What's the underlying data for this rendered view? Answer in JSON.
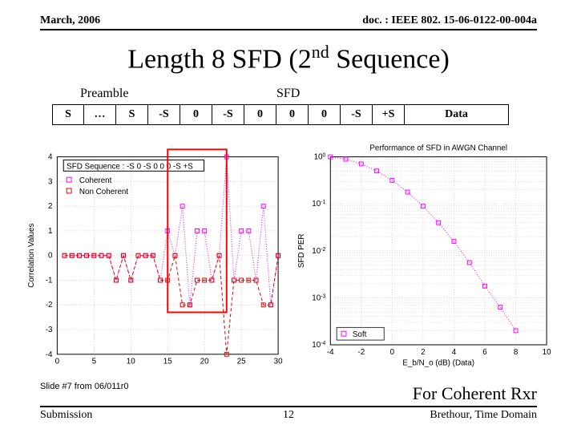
{
  "header": {
    "left": "March, 2006",
    "right": "doc. : IEEE 802. 15-06-0122-00-004a"
  },
  "title": {
    "pre": "Length 8 SFD (2",
    "sup": "nd",
    "post": " Sequence)"
  },
  "labels": {
    "preamble": "Preamble",
    "sfd": "SFD"
  },
  "seq": {
    "cells": [
      "S",
      "…",
      "S",
      "-S",
      "0",
      "-S",
      "0",
      "0",
      "0",
      "-S",
      "+S",
      "Data"
    ],
    "widths": [
      40,
      40,
      40,
      40,
      40,
      40,
      40,
      40,
      40,
      40,
      40,
      130
    ],
    "preamble_span": [
      0,
      3
    ],
    "sfd_span": [
      3,
      11
    ]
  },
  "left_chart": {
    "title": "SFD Sequence : -S 0 -S 0 0 0 -S +S",
    "title_box": true,
    "ylabel": "Correlation Values",
    "xlim": [
      0,
      30
    ],
    "ylim": [
      -4,
      4
    ],
    "xticks": [
      0,
      5,
      10,
      15,
      20,
      25,
      30
    ],
    "yticks": [
      -4,
      -3,
      -2,
      -1,
      0,
      1,
      2,
      3,
      4
    ],
    "grid_color": "#b0b0b0",
    "legend": [
      {
        "label": "Coherent",
        "color": "#ff00ff",
        "marker": "sq-dot"
      },
      {
        "label": "Non Coherent",
        "color": "#e00000",
        "marker": "sq-dash"
      }
    ],
    "coherent": {
      "color": "#ff00ff",
      "pts": [
        [
          1,
          0
        ],
        [
          2,
          0
        ],
        [
          3,
          0
        ],
        [
          4,
          0
        ],
        [
          5,
          0
        ],
        [
          6,
          0
        ],
        [
          7,
          0
        ],
        [
          8,
          -1
        ],
        [
          9,
          0
        ],
        [
          10,
          -1
        ],
        [
          11,
          0
        ],
        [
          12,
          0
        ],
        [
          13,
          0
        ],
        [
          14,
          -1
        ],
        [
          15,
          1
        ],
        [
          16,
          0
        ],
        [
          17,
          2
        ],
        [
          18,
          -2
        ],
        [
          19,
          1
        ],
        [
          20,
          1
        ],
        [
          21,
          -1
        ],
        [
          22,
          0
        ],
        [
          23,
          4
        ],
        [
          24,
          -1
        ],
        [
          25,
          1
        ],
        [
          26,
          1
        ],
        [
          27,
          -1
        ],
        [
          28,
          2
        ],
        [
          29,
          -2
        ],
        [
          30,
          0
        ]
      ]
    },
    "noncoh": {
      "color": "#e00000",
      "pts": [
        [
          1,
          0
        ],
        [
          2,
          0
        ],
        [
          3,
          0
        ],
        [
          4,
          0
        ],
        [
          5,
          0
        ],
        [
          6,
          0
        ],
        [
          7,
          0
        ],
        [
          8,
          -1
        ],
        [
          9,
          0
        ],
        [
          10,
          -1
        ],
        [
          11,
          0
        ],
        [
          12,
          0
        ],
        [
          13,
          0
        ],
        [
          14,
          -1
        ],
        [
          15,
          -1
        ],
        [
          16,
          0
        ],
        [
          17,
          -2
        ],
        [
          18,
          -2
        ],
        [
          19,
          -1
        ],
        [
          20,
          -1
        ],
        [
          21,
          -1
        ],
        [
          22,
          0
        ],
        [
          23,
          -4
        ],
        [
          24,
          -1
        ],
        [
          25,
          -1
        ],
        [
          26,
          -1
        ],
        [
          27,
          -1
        ],
        [
          28,
          -2
        ],
        [
          29,
          -2
        ],
        [
          30,
          0
        ]
      ]
    },
    "red_box": {
      "x": [
        15,
        23
      ],
      "y": [
        -2.3,
        4.3
      ],
      "color": "#ff0000",
      "lw": 2
    }
  },
  "right_chart": {
    "title": "Performance of SFD in AWGN Channel",
    "ylabel": "SFD PER",
    "xlabel": "E_b/N_o (dB) (Data)",
    "xlim": [
      -4,
      10
    ],
    "xticks": [
      -4,
      -2,
      0,
      2,
      4,
      6,
      8,
      10
    ],
    "yticks_exp": [
      0,
      -1,
      -2,
      -3,
      -4
    ],
    "grid_color": "#b0b0b0",
    "legend": [
      {
        "label": "Soft",
        "marker": "sq",
        "color": "#ff00ff"
      }
    ],
    "series": {
      "color": "#ff00ff",
      "pts": [
        [
          -4,
          0
        ],
        [
          -3,
          -0.05
        ],
        [
          -2,
          -0.15
        ],
        [
          -1,
          -0.3
        ],
        [
          0,
          -0.5
        ],
        [
          1,
          -0.75
        ],
        [
          2,
          -1.05
        ],
        [
          3,
          -1.4
        ],
        [
          4,
          -1.8
        ],
        [
          5,
          -2.25
        ],
        [
          6,
          -2.75
        ],
        [
          7,
          -3.2
        ],
        [
          8,
          -3.7
        ]
      ]
    }
  },
  "footer": {
    "slide": "Slide #7 from 06/011r0",
    "coh": "For Coherent Rxr",
    "left": "Submission",
    "page": "12",
    "right": "Brethour, Time Domain"
  }
}
